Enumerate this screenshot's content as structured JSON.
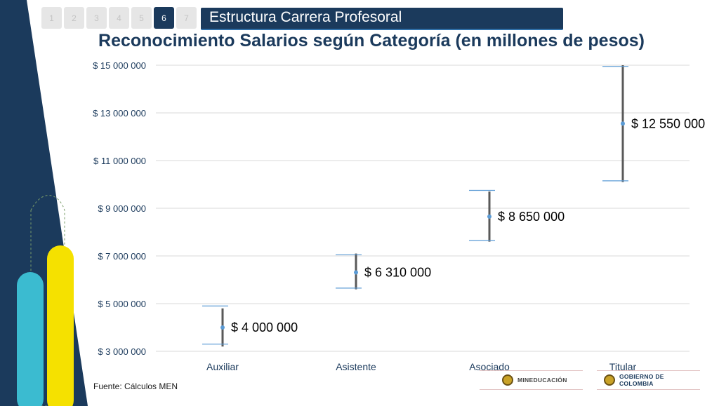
{
  "pager": {
    "pages": [
      "1",
      "2",
      "3",
      "4",
      "5",
      "6",
      "7"
    ],
    "active_index": 5
  },
  "header": {
    "section_title": "Estructura Carrera Profesoral"
  },
  "chart_data": {
    "type": "range",
    "title": "Reconocimiento Salarios según Categoría (en millones de pesos)",
    "categories": [
      "Auxiliar",
      "Asistente",
      "Asociado",
      "Titular"
    ],
    "series": [
      {
        "values": [
          4000000,
          6310000,
          8650000,
          12550000
        ],
        "low": [
          3200000,
          5600000,
          7600000,
          10100000
        ],
        "high": [
          4800000,
          7100000,
          9700000,
          15000000
        ],
        "cap_low": [
          3300000,
          5650000,
          7650000,
          10150000
        ],
        "cap_high": [
          4900000,
          7050000,
          9750000,
          14950000
        ],
        "labels": [
          "$ 4 000 000",
          "$ 6 310 000",
          "$ 8 650 000",
          "$ 12 550 000"
        ]
      }
    ],
    "yticks": [
      3000000,
      5000000,
      7000000,
      9000000,
      11000000,
      13000000,
      15000000
    ],
    "ytick_labels": [
      "$ 3 000 000",
      "$ 5 000 000",
      "$ 7 000 000",
      "$ 9 000 000",
      "$ 11 000 000",
      "$ 13 000 000",
      "$ 15 000 000"
    ],
    "ylim": [
      3000000,
      15000000
    ],
    "grid": true,
    "colors": {
      "range_line": "#595959",
      "cap": "#5b9bd5",
      "point": "#5b9bd5",
      "grid": "#d9d9d9"
    }
  },
  "footnote": "Fuente: Cálculos MEN",
  "logos": {
    "ministry": "MINEDUCACIÓN",
    "government": "GOBIERNO DE COLOMBIA"
  },
  "theme": {
    "navy": "#1b3a5c",
    "cyan": "#3bbbd0",
    "yellow": "#f5e100"
  }
}
